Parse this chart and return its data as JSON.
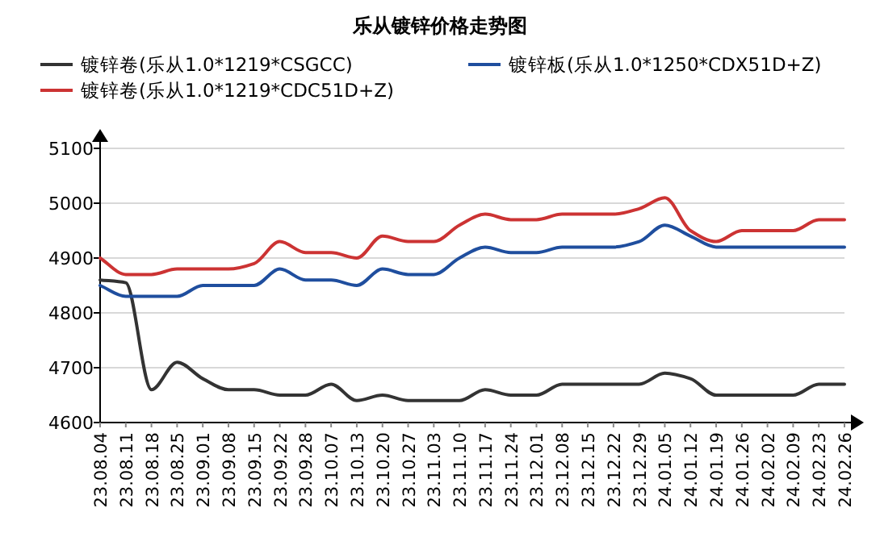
{
  "chart_data": {
    "type": "line",
    "title": "乐从镀锌价格走势图",
    "categories": [
      "23.08.04",
      "23.08.11",
      "23.08.18",
      "23.08.25",
      "23.09.01",
      "23.09.08",
      "23.09.15",
      "23.09.22",
      "23.09.28",
      "23.10.07",
      "23.10.13",
      "23.10.20",
      "23.10.27",
      "23.11.03",
      "23.11.10",
      "23.11.17",
      "23.11.24",
      "23.12.01",
      "23.12.08",
      "23.12.15",
      "23.12.22",
      "23.12.29",
      "24.01.05",
      "24.01.12",
      "24.01.19",
      "24.01.26",
      "24.02.02",
      "24.02.09",
      "24.02.23",
      "24.02.26"
    ],
    "series": [
      {
        "name": "镀锌卷(乐从1.0*1219*CSGCC)",
        "color": "#333333",
        "values": [
          4860,
          4855,
          4660,
          4710,
          4680,
          4660,
          4660,
          4650,
          4650,
          4670,
          4640,
          4650,
          4640,
          4640,
          4640,
          4660,
          4650,
          4650,
          4670,
          4670,
          4670,
          4670,
          4690,
          4680,
          4650,
          4650,
          4650,
          4650,
          4670,
          4670
        ]
      },
      {
        "name": "镀锌板(乐从1.0*1250*CDX51D+Z)",
        "color": "#1f4e9e",
        "values": [
          4850,
          4830,
          4830,
          4830,
          4850,
          4850,
          4850,
          4880,
          4860,
          4860,
          4850,
          4880,
          4870,
          4870,
          4900,
          4920,
          4910,
          4910,
          4920,
          4920,
          4920,
          4930,
          4960,
          4940,
          4920,
          4920,
          4920,
          4920,
          4920,
          4920
        ]
      },
      {
        "name": "镀锌卷(乐从1.0*1219*CDC51D+Z)",
        "color": "#cc3333",
        "values": [
          4900,
          4870,
          4870,
          4880,
          4880,
          4880,
          4890,
          4930,
          4910,
          4910,
          4900,
          4940,
          4930,
          4930,
          4960,
          4980,
          4970,
          4970,
          4980,
          4980,
          4980,
          4990,
          5010,
          4950,
          4930,
          4950,
          4950,
          4950,
          4970,
          4970
        ]
      }
    ],
    "ylim": [
      4600,
      5100
    ],
    "yticks": [
      4600,
      4700,
      4800,
      4900,
      5000,
      5100
    ],
    "grid": "y",
    "legend": "top"
  }
}
